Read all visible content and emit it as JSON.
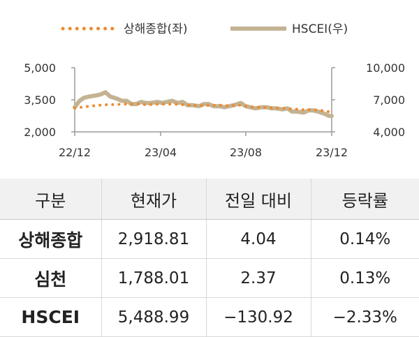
{
  "chart_data": {
    "type": "line",
    "legend": [
      {
        "name": "상해종합(좌)",
        "color": "#ee8a2e",
        "style": "dotted"
      },
      {
        "name": "HSCEI(우)",
        "color": "#c3b392",
        "style": "solid"
      }
    ],
    "legend_position": "top",
    "x_ticks": [
      "22/12",
      "23/04",
      "23/08",
      "23/12"
    ],
    "x_range": [
      "2022-12",
      "2023-12"
    ],
    "y_left": {
      "ticks": [
        "5,000",
        "3,500",
        "2,000"
      ],
      "range": [
        2000,
        5000
      ]
    },
    "y_right": {
      "ticks": [
        "10,000",
        "7,000",
        "4,000"
      ],
      "range": [
        4000,
        10000
      ]
    },
    "grid": false,
    "series": [
      {
        "name": "상해종합(좌)",
        "axis": "left",
        "x": [
          "2022-12-01",
          "2022-12-15",
          "2023-01-01",
          "2023-01-15",
          "2023-02-01",
          "2023-02-15",
          "2023-03-01",
          "2023-03-15",
          "2023-04-01",
          "2023-04-15",
          "2023-05-01",
          "2023-05-15",
          "2023-06-01",
          "2023-06-15",
          "2023-07-01",
          "2023-07-15",
          "2023-08-01",
          "2023-08-15",
          "2023-09-01",
          "2023-09-15",
          "2023-10-01",
          "2023-10-15",
          "2023-11-01",
          "2023-11-15",
          "2023-12-01",
          "2023-12-12"
        ],
        "values": [
          3110,
          3170,
          3230,
          3270,
          3280,
          3300,
          3310,
          3270,
          3290,
          3300,
          3290,
          3250,
          3230,
          3240,
          3250,
          3220,
          3250,
          3160,
          3150,
          3120,
          3110,
          3080,
          3030,
          3040,
          2980,
          2920
        ]
      },
      {
        "name": "HSCEI(우)",
        "axis": "right",
        "x": [
          "2022-12-01",
          "2022-12-08",
          "2022-12-15",
          "2022-12-22",
          "2023-01-01",
          "2023-01-08",
          "2023-01-15",
          "2023-01-22",
          "2023-02-01",
          "2023-02-08",
          "2023-02-15",
          "2023-02-22",
          "2023-03-01",
          "2023-03-08",
          "2023-03-15",
          "2023-03-22",
          "2023-04-01",
          "2023-04-08",
          "2023-04-15",
          "2023-04-22",
          "2023-05-01",
          "2023-05-08",
          "2023-05-15",
          "2023-05-22",
          "2023-06-01",
          "2023-06-08",
          "2023-06-15",
          "2023-06-22",
          "2023-07-01",
          "2023-07-08",
          "2023-07-15",
          "2023-07-22",
          "2023-08-01",
          "2023-08-08",
          "2023-08-15",
          "2023-08-22",
          "2023-09-01",
          "2023-09-08",
          "2023-09-15",
          "2023-09-22",
          "2023-10-01",
          "2023-10-08",
          "2023-10-15",
          "2023-10-22",
          "2023-11-01",
          "2023-11-08",
          "2023-11-15",
          "2023-11-22",
          "2023-12-01",
          "2023-12-08",
          "2023-12-12"
        ],
        "values": [
          6300,
          6900,
          7200,
          7300,
          7400,
          7500,
          7700,
          7300,
          7100,
          6900,
          6900,
          6600,
          6600,
          6800,
          6700,
          6700,
          6800,
          6700,
          6800,
          6900,
          6700,
          6800,
          6500,
          6500,
          6400,
          6600,
          6600,
          6400,
          6400,
          6300,
          6400,
          6500,
          6700,
          6400,
          6300,
          6200,
          6300,
          6300,
          6200,
          6200,
          6100,
          6200,
          5900,
          5900,
          5800,
          6000,
          6000,
          5900,
          5700,
          5500,
          5490
        ]
      }
    ]
  },
  "table": {
    "headers": [
      "구분",
      "현재가",
      "전일 대비",
      "등락률"
    ],
    "rows": [
      {
        "name": "상해종합",
        "price": "2,918.81",
        "change": "4.04",
        "rate": "0.14%"
      },
      {
        "name": "심천",
        "price": "1,788.01",
        "change": "2.37",
        "rate": "0.13%"
      },
      {
        "name": "HSCEI",
        "price": "5,488.99",
        "change": "−130.92",
        "rate": "−2.33%"
      }
    ]
  }
}
